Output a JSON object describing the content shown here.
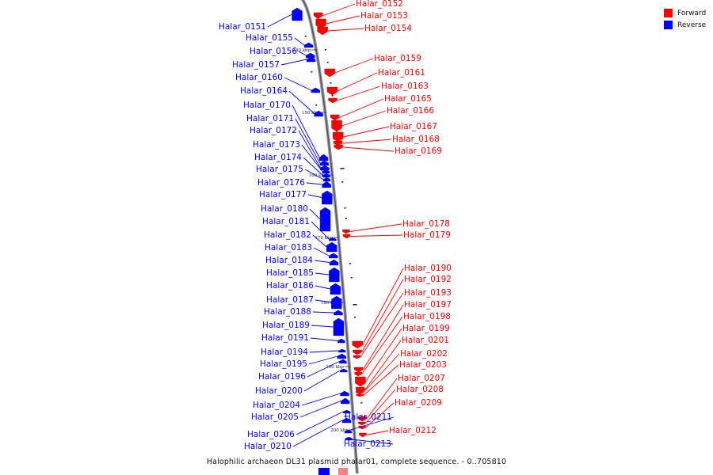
{
  "legend": {
    "forward": {
      "label": "Forward",
      "color": "#ff0000"
    },
    "reverse": {
      "label": "Reverse",
      "color": "#0000ff"
    }
  },
  "caption": "Halophilic archaeon DL31 plasmid phalar01, complete sequence. - 0..705810",
  "scale_ticks": [
    "140 kbp",
    "150 kbp",
    "160 kbp",
    "170 kbp",
    "180 kbp",
    "190 kbp",
    "200 kbp"
  ],
  "genes": [
    {
      "id": "Halar_0151",
      "strand": "reverse"
    },
    {
      "id": "Halar_0152",
      "strand": "forward"
    },
    {
      "id": "Halar_0153",
      "strand": "forward"
    },
    {
      "id": "Halar_0154",
      "strand": "forward"
    },
    {
      "id": "Halar_0155",
      "strand": "reverse"
    },
    {
      "id": "Halar_0156",
      "strand": "reverse"
    },
    {
      "id": "Halar_0157",
      "strand": "reverse"
    },
    {
      "id": "Halar_0159",
      "strand": "forward"
    },
    {
      "id": "Halar_0160",
      "strand": "reverse"
    },
    {
      "id": "Halar_0161",
      "strand": "forward"
    },
    {
      "id": "Halar_0163",
      "strand": "forward"
    },
    {
      "id": "Halar_0164",
      "strand": "reverse"
    },
    {
      "id": "Halar_0165",
      "strand": "forward"
    },
    {
      "id": "Halar_0166",
      "strand": "forward"
    },
    {
      "id": "Halar_0167",
      "strand": "forward"
    },
    {
      "id": "Halar_0168",
      "strand": "forward"
    },
    {
      "id": "Halar_0169",
      "strand": "forward"
    },
    {
      "id": "Halar_0170",
      "strand": "reverse"
    },
    {
      "id": "Halar_0171",
      "strand": "reverse"
    },
    {
      "id": "Halar_0172",
      "strand": "reverse"
    },
    {
      "id": "Halar_0173",
      "strand": "reverse"
    },
    {
      "id": "Halar_0174",
      "strand": "reverse"
    },
    {
      "id": "Halar_0175",
      "strand": "reverse"
    },
    {
      "id": "Halar_0176",
      "strand": "reverse"
    },
    {
      "id": "Halar_0177",
      "strand": "reverse"
    },
    {
      "id": "Halar_0178",
      "strand": "forward"
    },
    {
      "id": "Halar_0179",
      "strand": "forward"
    },
    {
      "id": "Halar_0180",
      "strand": "reverse"
    },
    {
      "id": "Halar_0181",
      "strand": "reverse"
    },
    {
      "id": "Halar_0182",
      "strand": "reverse"
    },
    {
      "id": "Halar_0183",
      "strand": "reverse"
    },
    {
      "id": "Halar_0184",
      "strand": "reverse"
    },
    {
      "id": "Halar_0185",
      "strand": "reverse"
    },
    {
      "id": "Halar_0186",
      "strand": "reverse"
    },
    {
      "id": "Halar_0187",
      "strand": "reverse"
    },
    {
      "id": "Halar_0188",
      "strand": "reverse"
    },
    {
      "id": "Halar_0189",
      "strand": "reverse"
    },
    {
      "id": "Halar_0190",
      "strand": "forward"
    },
    {
      "id": "Halar_0191",
      "strand": "reverse"
    },
    {
      "id": "Halar_0192",
      "strand": "forward"
    },
    {
      "id": "Halar_0193",
      "strand": "forward"
    },
    {
      "id": "Halar_0194",
      "strand": "reverse"
    },
    {
      "id": "Halar_0195",
      "strand": "reverse"
    },
    {
      "id": "Halar_0196",
      "strand": "reverse"
    },
    {
      "id": "Halar_0197",
      "strand": "forward"
    },
    {
      "id": "Halar_0198",
      "strand": "forward"
    },
    {
      "id": "Halar_0199",
      "strand": "forward"
    },
    {
      "id": "Halar_0200",
      "strand": "reverse"
    },
    {
      "id": "Halar_0201",
      "strand": "forward"
    },
    {
      "id": "Halar_0202",
      "strand": "forward"
    },
    {
      "id": "Halar_0203",
      "strand": "forward"
    },
    {
      "id": "Halar_0204",
      "strand": "reverse"
    },
    {
      "id": "Halar_0205",
      "strand": "reverse"
    },
    {
      "id": "Halar_0206",
      "strand": "reverse"
    },
    {
      "id": "Halar_0207",
      "strand": "forward"
    },
    {
      "id": "Halar_0208",
      "strand": "forward"
    },
    {
      "id": "Halar_0209",
      "strand": "forward"
    },
    {
      "id": "Halar_0210",
      "strand": "reverse"
    },
    {
      "id": "Halar_0211",
      "strand": "reverse"
    },
    {
      "id": "Halar_0212",
      "strand": "forward"
    },
    {
      "id": "Halar_0213",
      "strand": "reverse"
    }
  ]
}
